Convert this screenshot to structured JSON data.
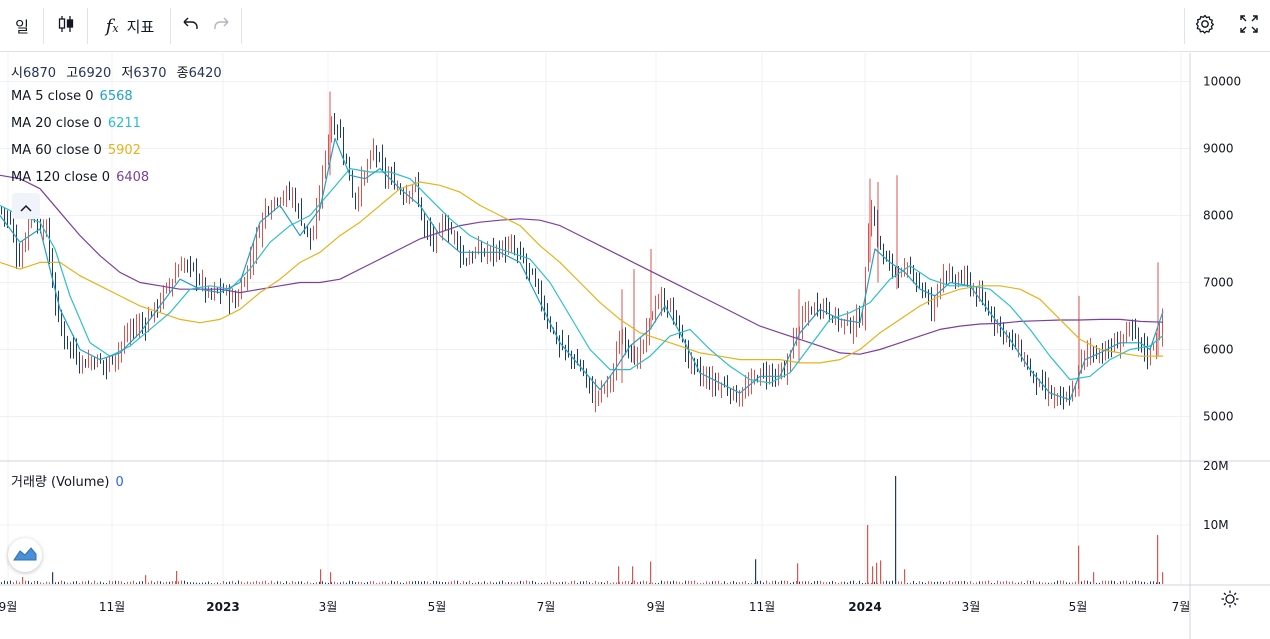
{
  "toolbar": {
    "interval": "일",
    "indicators_label": "지표"
  },
  "ohlc": {
    "open_label": "시",
    "open": "6870",
    "high_label": "고",
    "high": "6920",
    "low_label": "저",
    "low": "6370",
    "close_label": "종",
    "close": "6420"
  },
  "moving_averages": [
    {
      "label": "MA 5 close 0",
      "value": "6568",
      "color": "#21a0c8"
    },
    {
      "label": "MA 20 close 0",
      "value": "6211",
      "color": "#2bc0c8"
    },
    {
      "label": "MA 60 close 0",
      "value": "5902",
      "color": "#e8b21a"
    },
    {
      "label": "MA 120 close 0",
      "value": "6408",
      "color": "#7b3fa0"
    }
  ],
  "volume_pane": {
    "label": "거래량 (Volume)",
    "value": "0"
  },
  "colors": {
    "up": "#d9534f",
    "down": "#1f3b6e",
    "grid": "#eef0f4"
  },
  "chart_data": {
    "type": "candlestick",
    "price_axis": {
      "ticks": [
        5000,
        6000,
        7000,
        8000,
        9000,
        10000
      ],
      "range": [
        4650,
        10500
      ]
    },
    "volume_axis": {
      "ticks": [
        "10M",
        "20M"
      ],
      "range_millions": [
        0,
        20
      ]
    },
    "time_axis": [
      "9월",
      "11월",
      "2023",
      "3월",
      "5월",
      "7월",
      "9월",
      "11월",
      "2024",
      "3월",
      "5월",
      "7월"
    ],
    "close_path": [
      [
        0,
        8100
      ],
      [
        10,
        7900
      ],
      [
        18,
        7300
      ],
      [
        24,
        7600
      ],
      [
        30,
        8200
      ],
      [
        38,
        7800
      ],
      [
        45,
        7900
      ],
      [
        52,
        7000
      ],
      [
        60,
        6300
      ],
      [
        68,
        6100
      ],
      [
        76,
        5900
      ],
      [
        84,
        5800
      ],
      [
        95,
        5850
      ],
      [
        106,
        5750
      ],
      [
        118,
        6000
      ],
      [
        130,
        6300
      ],
      [
        145,
        6400
      ],
      [
        158,
        6700
      ],
      [
        170,
        7000
      ],
      [
        182,
        7300
      ],
      [
        195,
        7150
      ],
      [
        208,
        6800
      ],
      [
        222,
        6900
      ],
      [
        235,
        6700
      ],
      [
        245,
        7100
      ],
      [
        255,
        7600
      ],
      [
        265,
        8100
      ],
      [
        278,
        8300
      ],
      [
        292,
        8300
      ],
      [
        302,
        7900
      ],
      [
        312,
        7600
      ],
      [
        322,
        8600
      ],
      [
        330,
        9400
      ],
      [
        338,
        9300
      ],
      [
        346,
        8800
      ],
      [
        354,
        8200
      ],
      [
        364,
        8600
      ],
      [
        374,
        9000
      ],
      [
        384,
        8600
      ],
      [
        394,
        8500
      ],
      [
        404,
        8300
      ],
      [
        414,
        8500
      ],
      [
        424,
        7800
      ],
      [
        434,
        7600
      ],
      [
        444,
        7900
      ],
      [
        454,
        7700
      ],
      [
        464,
        7300
      ],
      [
        474,
        7450
      ],
      [
        488,
        7450
      ],
      [
        500,
        7500
      ],
      [
        512,
        7500
      ],
      [
        524,
        7300
      ],
      [
        534,
        7000
      ],
      [
        546,
        6500
      ],
      [
        558,
        6100
      ],
      [
        570,
        5900
      ],
      [
        582,
        5700
      ],
      [
        592,
        5300
      ],
      [
        602,
        5400
      ],
      [
        612,
        5600
      ],
      [
        620,
        6200
      ],
      [
        628,
        6100
      ],
      [
        636,
        5800
      ],
      [
        646,
        6200
      ],
      [
        654,
        6700
      ],
      [
        662,
        6700
      ],
      [
        672,
        6600
      ],
      [
        682,
        6100
      ],
      [
        690,
        5800
      ],
      [
        700,
        5600
      ],
      [
        712,
        5500
      ],
      [
        724,
        5450
      ],
      [
        736,
        5300
      ],
      [
        746,
        5400
      ],
      [
        756,
        5600
      ],
      [
        766,
        5650
      ],
      [
        776,
        5600
      ],
      [
        784,
        5600
      ],
      [
        792,
        6100
      ],
      [
        800,
        6400
      ],
      [
        810,
        6600
      ],
      [
        822,
        6700
      ],
      [
        832,
        6500
      ],
      [
        842,
        6400
      ],
      [
        852,
        6350
      ],
      [
        862,
        6500
      ],
      [
        870,
        8200
      ],
      [
        878,
        7600
      ],
      [
        886,
        7300
      ],
      [
        894,
        7200
      ],
      [
        904,
        7100
      ],
      [
        912,
        7200
      ],
      [
        922,
        6900
      ],
      [
        932,
        6600
      ],
      [
        942,
        7200
      ],
      [
        952,
        7000
      ],
      [
        962,
        7100
      ],
      [
        972,
        6900
      ],
      [
        982,
        6700
      ],
      [
        992,
        6500
      ],
      [
        1002,
        6300
      ],
      [
        1012,
        6100
      ],
      [
        1022,
        5900
      ],
      [
        1032,
        5600
      ],
      [
        1042,
        5400
      ],
      [
        1052,
        5300
      ],
      [
        1062,
        5200
      ],
      [
        1072,
        5350
      ],
      [
        1080,
        5800
      ],
      [
        1088,
        6000
      ],
      [
        1098,
        5950
      ],
      [
        1110,
        6000
      ],
      [
        1120,
        6150
      ],
      [
        1130,
        6300
      ],
      [
        1140,
        6100
      ],
      [
        1148,
        5900
      ],
      [
        1156,
        6200
      ],
      [
        1163,
        6420
      ]
    ],
    "ma5": [
      [
        0,
        8000
      ],
      [
        20,
        7600
      ],
      [
        40,
        7800
      ],
      [
        60,
        6600
      ],
      [
        80,
        6000
      ],
      [
        100,
        5850
      ],
      [
        120,
        5950
      ],
      [
        140,
        6250
      ],
      [
        160,
        6650
      ],
      [
        180,
        7050
      ],
      [
        200,
        6900
      ],
      [
        220,
        6850
      ],
      [
        240,
        7000
      ],
      [
        260,
        7900
      ],
      [
        280,
        8150
      ],
      [
        300,
        7700
      ],
      [
        320,
        8100
      ],
      [
        335,
        9150
      ],
      [
        350,
        8600
      ],
      [
        365,
        8550
      ],
      [
        380,
        8700
      ],
      [
        400,
        8400
      ],
      [
        420,
        8150
      ],
      [
        440,
        7700
      ],
      [
        460,
        7450
      ],
      [
        480,
        7450
      ],
      [
        500,
        7450
      ],
      [
        520,
        7300
      ],
      [
        540,
        6700
      ],
      [
        560,
        6100
      ],
      [
        580,
        5750
      ],
      [
        600,
        5400
      ],
      [
        615,
        5700
      ],
      [
        630,
        6050
      ],
      [
        650,
        6300
      ],
      [
        665,
        6650
      ],
      [
        680,
        6250
      ],
      [
        700,
        5650
      ],
      [
        720,
        5500
      ],
      [
        740,
        5350
      ],
      [
        760,
        5600
      ],
      [
        780,
        5600
      ],
      [
        800,
        6250
      ],
      [
        820,
        6600
      ],
      [
        840,
        6450
      ],
      [
        860,
        6400
      ],
      [
        875,
        7500
      ],
      [
        890,
        7300
      ],
      [
        905,
        7150
      ],
      [
        920,
        6900
      ],
      [
        935,
        6800
      ],
      [
        950,
        7000
      ],
      [
        970,
        6950
      ],
      [
        990,
        6550
      ],
      [
        1010,
        6150
      ],
      [
        1030,
        5700
      ],
      [
        1050,
        5350
      ],
      [
        1070,
        5250
      ],
      [
        1085,
        5850
      ],
      [
        1100,
        5950
      ],
      [
        1120,
        6100
      ],
      [
        1140,
        6100
      ],
      [
        1150,
        6000
      ],
      [
        1163,
        6568
      ]
    ],
    "ma20": [
      [
        0,
        8150
      ],
      [
        20,
        8000
      ],
      [
        40,
        7900
      ],
      [
        55,
        7500
      ],
      [
        70,
        6800
      ],
      [
        90,
        6100
      ],
      [
        110,
        5900
      ],
      [
        130,
        6050
      ],
      [
        150,
        6300
      ],
      [
        170,
        6550
      ],
      [
        190,
        6900
      ],
      [
        210,
        6950
      ],
      [
        230,
        6900
      ],
      [
        250,
        7200
      ],
      [
        270,
        7600
      ],
      [
        290,
        7850
      ],
      [
        310,
        8000
      ],
      [
        330,
        8350
      ],
      [
        350,
        8700
      ],
      [
        370,
        8650
      ],
      [
        390,
        8650
      ],
      [
        410,
        8550
      ],
      [
        430,
        8250
      ],
      [
        450,
        7950
      ],
      [
        470,
        7700
      ],
      [
        490,
        7550
      ],
      [
        510,
        7450
      ],
      [
        530,
        7350
      ],
      [
        550,
        7000
      ],
      [
        570,
        6500
      ],
      [
        590,
        6000
      ],
      [
        610,
        5700
      ],
      [
        630,
        5700
      ],
      [
        650,
        5900
      ],
      [
        670,
        6200
      ],
      [
        690,
        6300
      ],
      [
        710,
        6000
      ],
      [
        730,
        5750
      ],
      [
        750,
        5550
      ],
      [
        770,
        5500
      ],
      [
        790,
        5650
      ],
      [
        810,
        6050
      ],
      [
        830,
        6450
      ],
      [
        850,
        6550
      ],
      [
        870,
        6700
      ],
      [
        890,
        7050
      ],
      [
        910,
        7250
      ],
      [
        930,
        7050
      ],
      [
        950,
        6950
      ],
      [
        970,
        6950
      ],
      [
        990,
        6900
      ],
      [
        1010,
        6650
      ],
      [
        1030,
        6300
      ],
      [
        1050,
        5900
      ],
      [
        1070,
        5550
      ],
      [
        1090,
        5600
      ],
      [
        1110,
        5850
      ],
      [
        1130,
        6000
      ],
      [
        1150,
        6050
      ],
      [
        1163,
        6211
      ]
    ],
    "ma60": [
      [
        0,
        7300
      ],
      [
        20,
        7200
      ],
      [
        40,
        7300
      ],
      [
        60,
        7300
      ],
      [
        80,
        7100
      ],
      [
        100,
        6950
      ],
      [
        120,
        6800
      ],
      [
        140,
        6650
      ],
      [
        160,
        6550
      ],
      [
        180,
        6450
      ],
      [
        200,
        6400
      ],
      [
        220,
        6450
      ],
      [
        240,
        6600
      ],
      [
        260,
        6850
      ],
      [
        280,
        7050
      ],
      [
        300,
        7300
      ],
      [
        320,
        7450
      ],
      [
        340,
        7700
      ],
      [
        360,
        7900
      ],
      [
        380,
        8150
      ],
      [
        400,
        8400
      ],
      [
        420,
        8500
      ],
      [
        440,
        8450
      ],
      [
        460,
        8350
      ],
      [
        480,
        8150
      ],
      [
        500,
        8000
      ],
      [
        520,
        7850
      ],
      [
        540,
        7550
      ],
      [
        560,
        7300
      ],
      [
        580,
        7000
      ],
      [
        600,
        6700
      ],
      [
        620,
        6450
      ],
      [
        640,
        6250
      ],
      [
        660,
        6150
      ],
      [
        680,
        6050
      ],
      [
        700,
        5950
      ],
      [
        720,
        5900
      ],
      [
        740,
        5850
      ],
      [
        760,
        5850
      ],
      [
        780,
        5850
      ],
      [
        800,
        5800
      ],
      [
        820,
        5800
      ],
      [
        840,
        5850
      ],
      [
        860,
        6000
      ],
      [
        880,
        6250
      ],
      [
        900,
        6450
      ],
      [
        920,
        6650
      ],
      [
        940,
        6800
      ],
      [
        960,
        6900
      ],
      [
        980,
        6950
      ],
      [
        1000,
        6950
      ],
      [
        1020,
        6900
      ],
      [
        1040,
        6750
      ],
      [
        1060,
        6450
      ],
      [
        1080,
        6150
      ],
      [
        1100,
        6000
      ],
      [
        1120,
        5950
      ],
      [
        1140,
        5900
      ],
      [
        1163,
        5902
      ]
    ],
    "ma120": [
      [
        0,
        8600
      ],
      [
        20,
        8550
      ],
      [
        40,
        8400
      ],
      [
        60,
        8050
      ],
      [
        80,
        7700
      ],
      [
        100,
        7400
      ],
      [
        120,
        7150
      ],
      [
        140,
        7000
      ],
      [
        160,
        6950
      ],
      [
        180,
        6900
      ],
      [
        200,
        6900
      ],
      [
        220,
        6900
      ],
      [
        240,
        6850
      ],
      [
        260,
        6900
      ],
      [
        280,
        6950
      ],
      [
        300,
        7000
      ],
      [
        320,
        7000
      ],
      [
        340,
        7050
      ],
      [
        360,
        7200
      ],
      [
        380,
        7350
      ],
      [
        400,
        7500
      ],
      [
        420,
        7650
      ],
      [
        440,
        7750
      ],
      [
        460,
        7850
      ],
      [
        480,
        7900
      ],
      [
        500,
        7930
      ],
      [
        520,
        7950
      ],
      [
        540,
        7930
      ],
      [
        560,
        7850
      ],
      [
        580,
        7700
      ],
      [
        600,
        7550
      ],
      [
        620,
        7400
      ],
      [
        640,
        7250
      ],
      [
        660,
        7100
      ],
      [
        680,
        6950
      ],
      [
        700,
        6800
      ],
      [
        720,
        6650
      ],
      [
        740,
        6500
      ],
      [
        760,
        6350
      ],
      [
        780,
        6250
      ],
      [
        800,
        6150
      ],
      [
        820,
        6050
      ],
      [
        840,
        5950
      ],
      [
        860,
        5930
      ],
      [
        880,
        6000
      ],
      [
        900,
        6100
      ],
      [
        920,
        6200
      ],
      [
        940,
        6300
      ],
      [
        960,
        6350
      ],
      [
        980,
        6380
      ],
      [
        1000,
        6390
      ],
      [
        1020,
        6420
      ],
      [
        1040,
        6430
      ],
      [
        1060,
        6440
      ],
      [
        1080,
        6440
      ],
      [
        1100,
        6450
      ],
      [
        1120,
        6450
      ],
      [
        1140,
        6420
      ],
      [
        1163,
        6408
      ]
    ],
    "volume_spikes_millions": [
      [
        22,
        1.2
      ],
      [
        52,
        2.0
      ],
      [
        145,
        1.5
      ],
      [
        176,
        2.2
      ],
      [
        320,
        2.5
      ],
      [
        330,
        2.0
      ],
      [
        618,
        3.0
      ],
      [
        632,
        3.0
      ],
      [
        650,
        3.8
      ],
      [
        755,
        4.2
      ],
      [
        797,
        3.5
      ],
      [
        867,
        10.0
      ],
      [
        872,
        3.0
      ],
      [
        876,
        3.6
      ],
      [
        880,
        4.0
      ],
      [
        895,
        18.3
      ],
      [
        904,
        2.5
      ],
      [
        1078,
        6.5
      ],
      [
        1093,
        2.0
      ],
      [
        1157,
        8.3
      ],
      [
        1162,
        2.0
      ]
    ]
  }
}
